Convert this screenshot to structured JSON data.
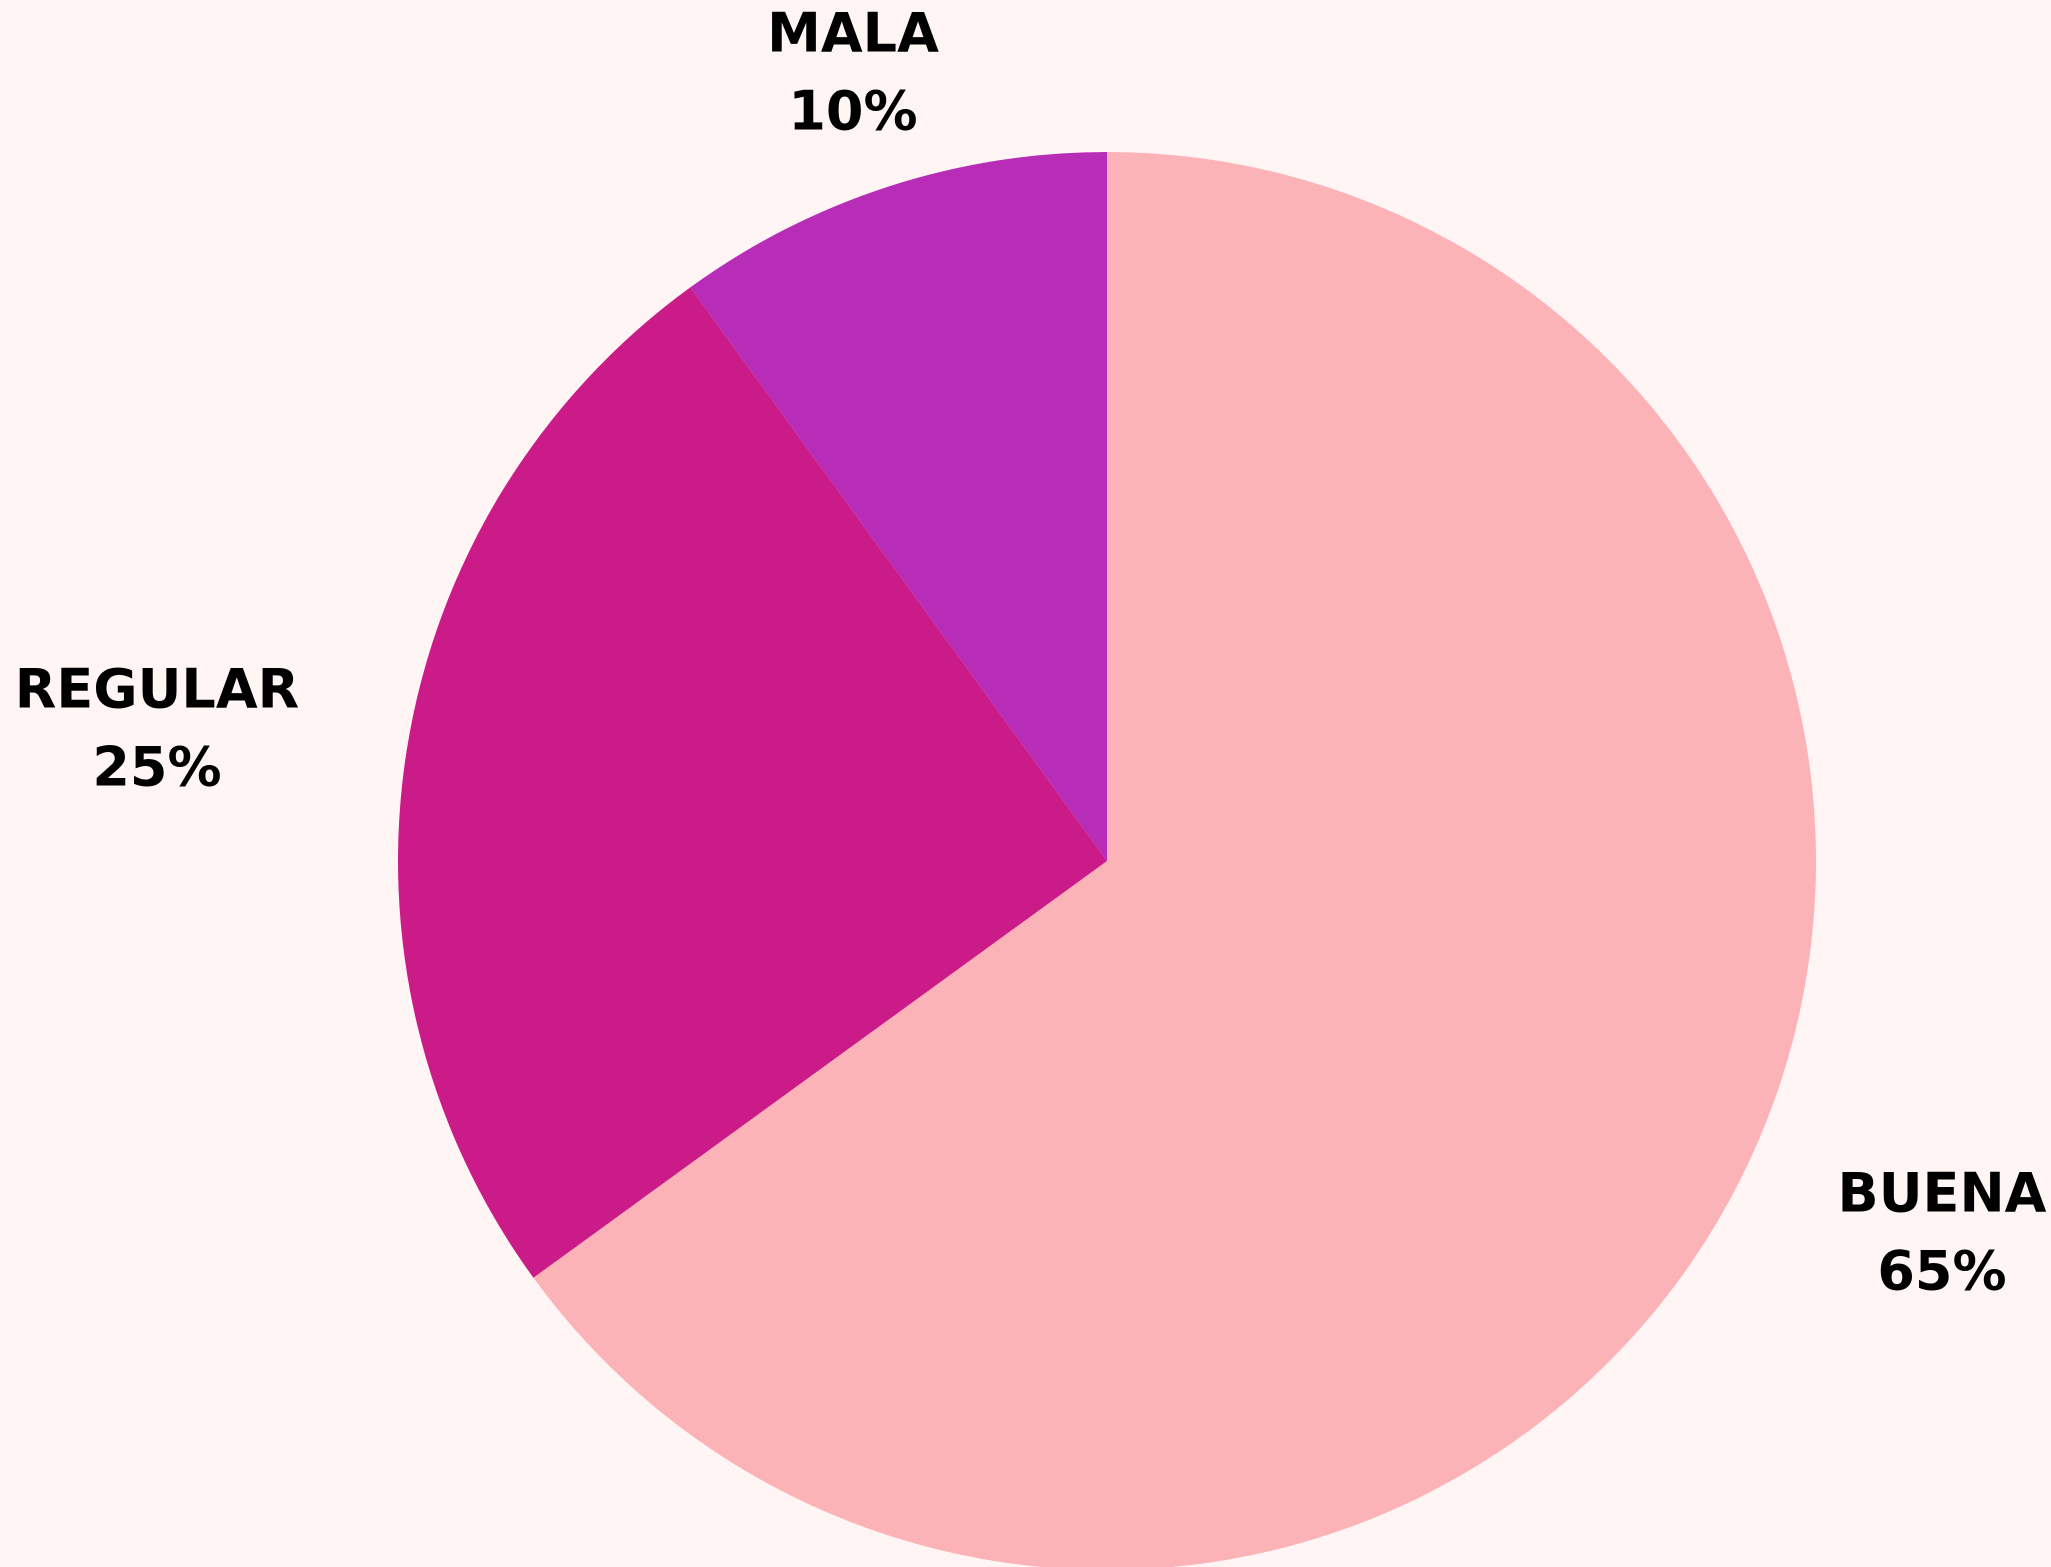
{
  "chart_data": {
    "type": "pie",
    "categories": [
      "BUENA",
      "REGULAR",
      "MALA"
    ],
    "values": [
      65,
      25,
      10
    ],
    "value_labels": [
      "65%",
      "25%",
      "10%"
    ],
    "colors": [
      "#fcb3b8",
      "#cb1b89",
      "#b82db8"
    ]
  }
}
